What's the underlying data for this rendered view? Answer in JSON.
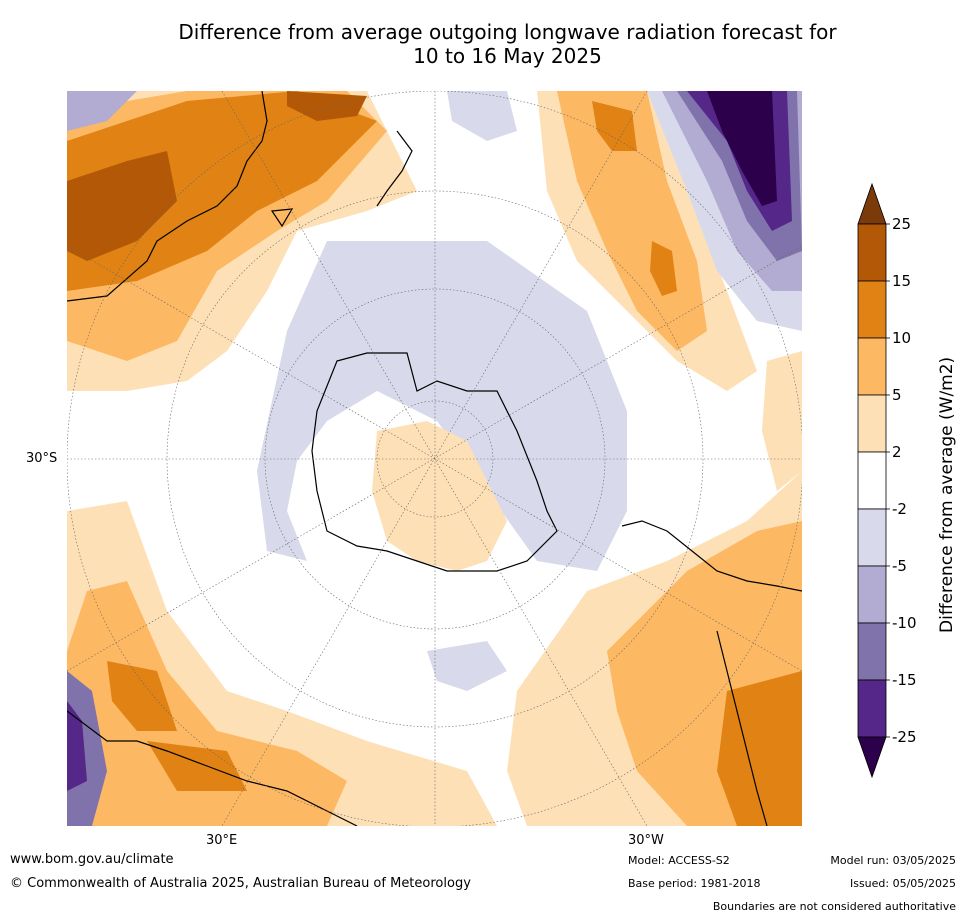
{
  "title_line1": "Difference from average outgoing longwave radiation forecast for",
  "title_line2": "10 to 16 May 2025",
  "map": {
    "projection": "south polar stereographic",
    "lat_label": "30°S",
    "lon_labels": [
      "30°E",
      "30°W"
    ]
  },
  "colorbar": {
    "label": "Difference from average (W/m2)",
    "ticks": [
      "25",
      "15",
      "10",
      "5",
      "2",
      "-2",
      "-5",
      "-10",
      "-15",
      "-25"
    ],
    "colors": [
      "#7a3a0a",
      "#b35806",
      "#e08214",
      "#fdb863",
      "#fee0b6",
      "#ffffff",
      "#d8daeb",
      "#b2abd2",
      "#8073ac",
      "#542788",
      "#2d004b"
    ]
  },
  "footer": {
    "website": "www.bom.gov.au/climate",
    "copyright": "© Commonwealth of Australia 2025, Australian Bureau of Meteorology",
    "model": "Model: ACCESS-S2",
    "base_period": "Base period: 1981-2018",
    "model_run": "Model run: 03/05/2025",
    "issued": "Issued: 05/05/2025",
    "disclaimer": "Boundaries are not considered authoritative"
  }
}
